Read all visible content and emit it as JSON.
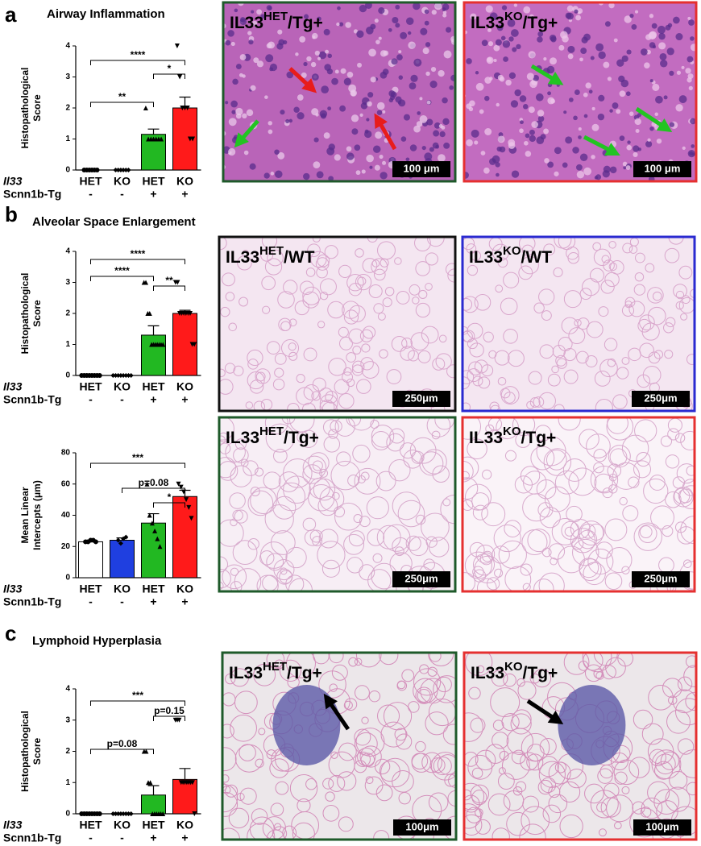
{
  "panel_labels": [
    "a",
    "b",
    "c"
  ],
  "panel_titles": [
    "Airway Inflammation",
    "Alveolar Space Enlargement",
    "Lymphoid Hyperplasia"
  ],
  "chart_data": [
    {
      "type": "bar",
      "ylabel": [
        "Histopathological",
        "Score"
      ],
      "categories": [
        "HET",
        "KO",
        "HET",
        "KO"
      ],
      "x_label": "Il33",
      "second_row": {
        "label": "Scnn1b-Tg",
        "values": [
          "-",
          "-",
          "+",
          "+"
        ]
      },
      "values": [
        0,
        0,
        1.15,
        2.0
      ],
      "errors": [
        0,
        0,
        0.17,
        0.35
      ],
      "colors": [
        "#ffffff",
        "#1f3fe0",
        "#22b822",
        "#ff1a1a"
      ],
      "points": [
        [
          0,
          0,
          0,
          0,
          0,
          0
        ],
        [
          0,
          0,
          0,
          0,
          0,
          0
        ],
        [
          2,
          1,
          1,
          1,
          1,
          1,
          1
        ],
        [
          4,
          3,
          2,
          2,
          2,
          1,
          1
        ]
      ],
      "ylim": [
        0,
        4
      ],
      "yticks": [
        0,
        1,
        2,
        3,
        4
      ],
      "annotations": [
        "****",
        "*",
        "**"
      ]
    },
    {
      "type": "bar",
      "ylabel": [
        "Histopathological",
        "Score"
      ],
      "categories": [
        "HET",
        "KO",
        "HET",
        "KO"
      ],
      "x_label": "Il33",
      "second_row": {
        "label": "Scnn1b-Tg",
        "values": [
          "-",
          "-",
          "+",
          "+"
        ]
      },
      "values": [
        0,
        0,
        1.3,
        2.0
      ],
      "errors": [
        0,
        0,
        0.3,
        0.1
      ],
      "colors": [
        "#ffffff",
        "#1f3fe0",
        "#22b822",
        "#ff1a1a"
      ],
      "points": [
        [
          0,
          0,
          0,
          0,
          0,
          0,
          0,
          0
        ],
        [
          0,
          0,
          0,
          0,
          0,
          0,
          0,
          0
        ],
        [
          3,
          3,
          2,
          2,
          1,
          1,
          1,
          1,
          1,
          1,
          1
        ],
        [
          3,
          3,
          2,
          2,
          2,
          2,
          2,
          2,
          1,
          1
        ]
      ],
      "ylim": [
        0,
        4
      ],
      "yticks": [
        0,
        1,
        2,
        3,
        4
      ],
      "annotations": [
        "****",
        "****",
        "**"
      ]
    },
    {
      "type": "bar",
      "ylabel": [
        "Mean Linear",
        "Intercepts (μm)"
      ],
      "categories": [
        "HET",
        "KO",
        "HET",
        "KO"
      ],
      "x_label": "Il33",
      "second_row": {
        "label": "Scnn1b-Tg",
        "values": [
          "-",
          "-",
          "+",
          "+"
        ]
      },
      "values": [
        23,
        24,
        35,
        52
      ],
      "errors": [
        1,
        1.5,
        6,
        4
      ],
      "colors": [
        "#ffffff",
        "#1f3fe0",
        "#22b822",
        "#ff1a1a"
      ],
      "points": [
        [
          23,
          23,
          24,
          24,
          23
        ],
        [
          24,
          22,
          25,
          26
        ],
        [
          60,
          40,
          35,
          30,
          25,
          20
        ],
        [
          60,
          58,
          55,
          50,
          45,
          38
        ]
      ],
      "ylim": [
        0,
        80
      ],
      "yticks": [
        0,
        20,
        40,
        60,
        80
      ],
      "annotations": [
        "***",
        "p=0.08",
        "*"
      ]
    },
    {
      "type": "bar",
      "ylabel": [
        "Histopathological",
        "Score"
      ],
      "categories": [
        "HET",
        "KO",
        "HET",
        "KO"
      ],
      "x_label": "Il33",
      "second_row": {
        "label": "Scnn1b-Tg",
        "values": [
          "-",
          "-",
          "+",
          "+"
        ]
      },
      "values": [
        0,
        0,
        0.6,
        1.1
      ],
      "errors": [
        0,
        0,
        0.3,
        0.35
      ],
      "colors": [
        "#ffffff",
        "#1f3fe0",
        "#22b822",
        "#ff1a1a"
      ],
      "points": [
        [
          0,
          0,
          0,
          0,
          0,
          0,
          0,
          0
        ],
        [
          0,
          0,
          0,
          0,
          0,
          0,
          0,
          0
        ],
        [
          2,
          2,
          1,
          1,
          0,
          0,
          0,
          0,
          0,
          0
        ],
        [
          3,
          3,
          3,
          1,
          1,
          1,
          1,
          1,
          1,
          1,
          0
        ]
      ],
      "ylim": [
        0,
        4
      ],
      "yticks": [
        0,
        1,
        2,
        3,
        4
      ],
      "annotations": [
        "***",
        "p=0.15",
        "p=0.08"
      ]
    }
  ],
  "images": [
    {
      "name": "IL33",
      "sup": "HET",
      "suffix": "/Tg+",
      "scale": "100 μm",
      "border": "#1e5a2a"
    },
    {
      "name": "IL33",
      "sup": "KO",
      "suffix": "/Tg+",
      "scale": "100 μm",
      "border": "#e53030"
    },
    {
      "name": "IL33",
      "sup": "HET",
      "suffix": "/WT",
      "scale": "250μm",
      "border": "#111111"
    },
    {
      "name": "IL33",
      "sup": "KO",
      "suffix": "/WT",
      "scale": "250μm",
      "border": "#2a2ad0"
    },
    {
      "name": "IL33",
      "sup": "HET",
      "suffix": "/Tg+",
      "scale": "250μm",
      "border": "#1e5a2a"
    },
    {
      "name": "IL33",
      "sup": "KO",
      "suffix": "/Tg+",
      "scale": "250μm",
      "border": "#e53030"
    },
    {
      "name": "IL33",
      "sup": "HET",
      "suffix": "/Tg+",
      "scale": "100μm",
      "border": "#1e5a2a"
    },
    {
      "name": "IL33",
      "sup": "KO",
      "suffix": "/Tg+",
      "scale": "100μm",
      "border": "#e53030"
    }
  ]
}
